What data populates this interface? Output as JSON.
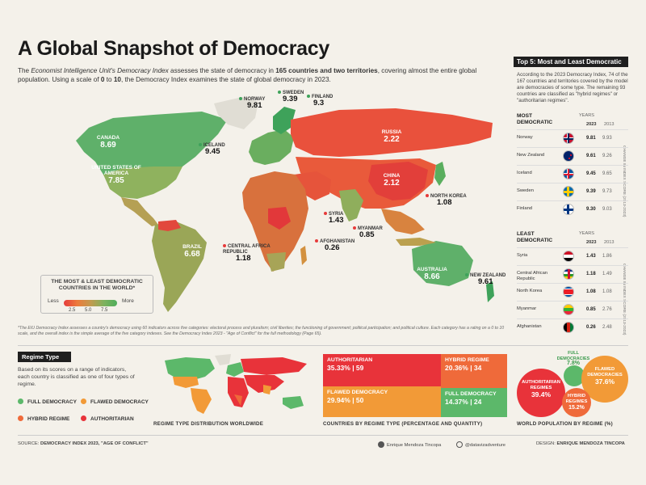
{
  "title": "A Global Snapshot of Democracy",
  "intro": {
    "p1": "The ",
    "source_italic": "Economist Intelligence Unit's Democracy Index",
    "p2": " assesses the state of democracy in ",
    "count": "165 countries and two territories",
    "p3": ", covering almost the entire global population. Using a scale of ",
    "zero": "0",
    "p4": " to ",
    "ten": "10",
    "p5": ", the Democracy Index examines the state of global democracy in 2023."
  },
  "map": {
    "labels": [
      {
        "name": "CANADA",
        "value": "8.69"
      },
      {
        "name": "UNITED STATES OF AMERICA",
        "value": "7.85"
      },
      {
        "name": "BRAZIL",
        "value": "6.68"
      },
      {
        "name": "RUSSIA",
        "value": "2.22"
      },
      {
        "name": "CHINA",
        "value": "2.12"
      },
      {
        "name": "AUSTRALIA",
        "value": "8.66"
      }
    ],
    "pins": [
      {
        "name": "NORWAY",
        "value": "9.81"
      },
      {
        "name": "SWEDEN",
        "value": "9.39"
      },
      {
        "name": "FINLAND",
        "value": "9.3"
      },
      {
        "name": "ICELAND",
        "value": "9.45"
      },
      {
        "name": "NORTH KOREA",
        "value": "1.08"
      },
      {
        "name": "SYRIA",
        "value": "1.43"
      },
      {
        "name": "MYANMAR",
        "value": "0.85"
      },
      {
        "name": "AFGHANISTAN",
        "value": "0.26"
      },
      {
        "name": "CENTRAL AFRICA REPUBLIC",
        "value": "1.18"
      },
      {
        "name": "NEW ZEALAND",
        "value": "9.61"
      }
    ],
    "legend": {
      "title": "THE MOST & LEAST DEMOCRATIC COUNTRIES IN THE WORLD*",
      "less": "Less",
      "more": "More",
      "ticks": [
        "2.5",
        "5.0",
        "7.5"
      ]
    }
  },
  "note": "*The EIU Democracy Index assesses a country's democracy using 60 indicators across five categories: electoral process and pluralism; civil liberties; the functioning of government; political participation; and political culture. Each category has a rating on a 0 to 10 scale, and the overall index is the simple average of the five category indexes. See the Democracy Index 2023 - \"Age of Conflict\" for the full methodology (Page 65).",
  "panel": {
    "title": "Top 5: Most and Least Democratic",
    "desc": "According to the 2023 Democracy Index, 74 of the 167 countries and territories covered by the model are democracies of some type. The remaining 93 countries are classified as \"hybrid regimes\" or \"authoritarian regimes\".",
    "most_label": "MOST DEMOCRATIC",
    "least_label": "LEAST DEMOCRATIC",
    "years": "YEARS",
    "y1": "2023",
    "y2": "2013",
    "side_note": "CHANGE IN INDEX SCORE (2013-2023)",
    "most": [
      {
        "country": "Norway",
        "s2023": "9.81",
        "s2013": "9.93"
      },
      {
        "country": "New Zealand",
        "s2023": "9.61",
        "s2013": "9.26"
      },
      {
        "country": "Iceland",
        "s2023": "9.45",
        "s2013": "9.65"
      },
      {
        "country": "Sweden",
        "s2023": "9.39",
        "s2013": "9.73"
      },
      {
        "country": "Finland",
        "s2023": "9.30",
        "s2013": "9.03"
      }
    ],
    "least": [
      {
        "country": "Syria",
        "s2023": "1.43",
        "s2013": "1.86"
      },
      {
        "country": "Central African Republic",
        "s2023": "1.18",
        "s2013": "1.49"
      },
      {
        "country": "North Korea",
        "s2023": "1.08",
        "s2013": "1.08"
      },
      {
        "country": "Myanmar",
        "s2023": "0.85",
        "s2013": "2.76"
      },
      {
        "country": "Afghanistan",
        "s2023": "0.26",
        "s2013": "2.48"
      }
    ]
  },
  "regime": {
    "head": "Regime Type",
    "desc": "Based on its scores on a range of indicators, each country is classified as one of four types of regime.",
    "legend": [
      "FULL DEMOCRACY",
      "FLAWED DEMOCRACY",
      "HYBRID REGIME",
      "AUTHORITARIAN"
    ],
    "colors": {
      "full": "#5cb86a",
      "flawed": "#f29a37",
      "hybrid": "#ef6a3a",
      "auth": "#e8333a"
    },
    "map_caption": "REGIME TYPE DISTRIBUTION WORLDWIDE",
    "tree_caption": "COUNTRIES BY REGIME TYPE (PERCENTAGE  AND QUANTITY)",
    "pop_caption": "WORLD POPULATION BY REGIME (%)",
    "tree": [
      {
        "name": "AUTHORITARIAN",
        "value": "35.33% | 59"
      },
      {
        "name": "HYBRID REGIME",
        "value": "20.36% | 34"
      },
      {
        "name": "FLAWED DEMOCRACY",
        "value": "29.94% | 50"
      },
      {
        "name": "FULL DEMOCRACY",
        "value": "14.37% | 24"
      }
    ],
    "population": [
      {
        "name": "FULL DEMOCRACIES",
        "value": "7.8%"
      },
      {
        "name": "FLAWED DEMOCRACIES",
        "value": "37.6%"
      },
      {
        "name": "AUTHORITARIAN REGIMES",
        "value": "39.4%"
      },
      {
        "name": "HYBRID REGIMES",
        "value": "15.2%"
      }
    ]
  },
  "footer": {
    "source_label": "SOURCE:",
    "source": "DEMOCRACY INDEX 2023, \"AGE OF CONFLICT\"",
    "author": "Enrique Mendoza Tincopa",
    "handle": "@datavizadventure",
    "design_label": "DESIGN:",
    "design": "ENRIQUE MENDOZA TINCOPA"
  }
}
